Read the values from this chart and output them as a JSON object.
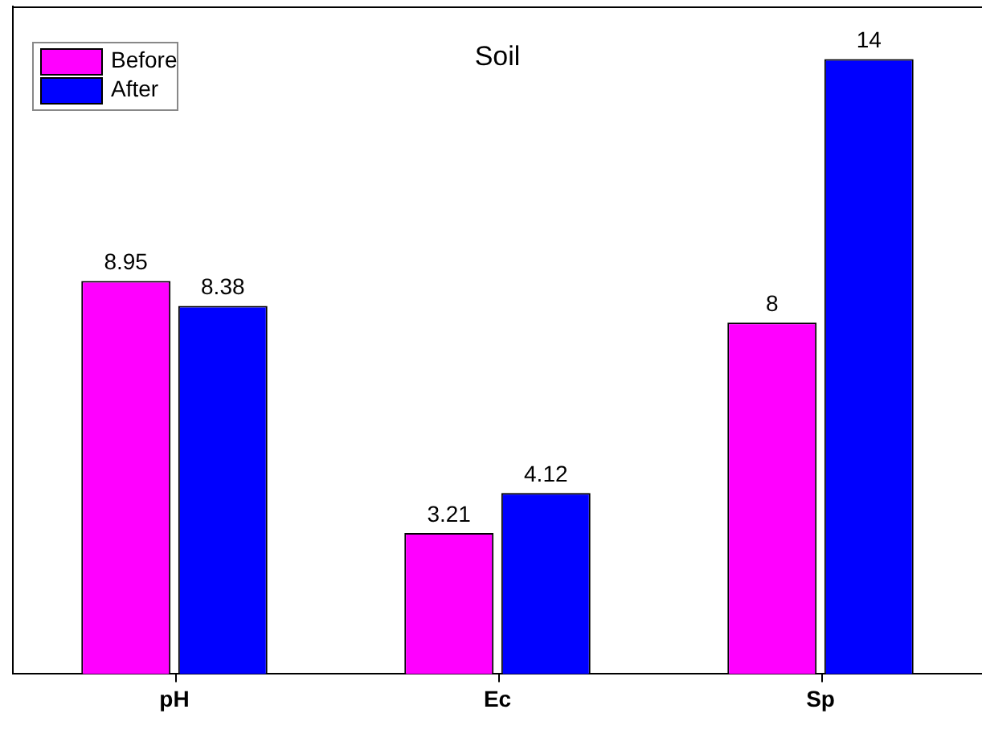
{
  "chart_data": {
    "type": "bar",
    "title": "Soil",
    "categories": [
      "pH",
      "Ec",
      "Sp"
    ],
    "series": [
      {
        "name": "Before",
        "color": "#ff00ff",
        "values": [
          8.95,
          3.21,
          8
        ]
      },
      {
        "name": "After",
        "color": "#0000ff",
        "values": [
          8.38,
          4.12,
          14
        ]
      }
    ],
    "ylim": [
      0,
      15.2
    ],
    "tick_labels": "x",
    "data_labels": true,
    "legend": "top left",
    "grid": false
  }
}
